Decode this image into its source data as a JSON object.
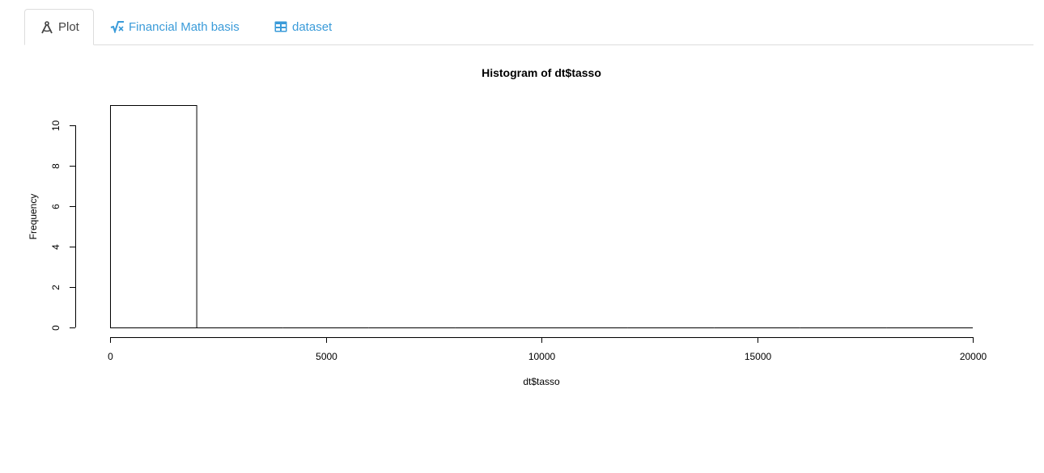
{
  "tabs": [
    {
      "label": "Plot",
      "icon": "drafting-compass-icon",
      "active": true
    },
    {
      "label": "Financial Math basis",
      "icon": "square-root-icon",
      "active": false
    },
    {
      "label": "dataset",
      "icon": "table-icon",
      "active": false
    }
  ],
  "colors": {
    "tab_link": "#3a9bd9",
    "tab_active": "#444444",
    "border": "#dddddd"
  },
  "chart_data": {
    "type": "bar",
    "title": "Histogram of dt$tasso",
    "xlabel": "dt$tasso",
    "ylabel": "Frequency",
    "xlim": [
      0,
      20000
    ],
    "ylim": [
      0,
      11
    ],
    "bins": [
      {
        "x0": 0,
        "x1": 2000,
        "count": 11
      },
      {
        "x0": 2000,
        "x1": 4000,
        "count": 0
      },
      {
        "x0": 4000,
        "x1": 6000,
        "count": 0
      },
      {
        "x0": 6000,
        "x1": 8000,
        "count": 0
      },
      {
        "x0": 8000,
        "x1": 10000,
        "count": 0
      },
      {
        "x0": 10000,
        "x1": 12000,
        "count": 0
      },
      {
        "x0": 12000,
        "x1": 14000,
        "count": 0
      },
      {
        "x0": 14000,
        "x1": 16000,
        "count": 0
      },
      {
        "x0": 16000,
        "x1": 18000,
        "count": 0
      },
      {
        "x0": 18000,
        "x1": 20000,
        "count": 0
      }
    ],
    "x_ticks": [
      0,
      5000,
      10000,
      15000,
      20000
    ],
    "y_ticks": [
      0,
      2,
      4,
      6,
      8,
      10
    ],
    "grid": false,
    "legend": "none"
  }
}
